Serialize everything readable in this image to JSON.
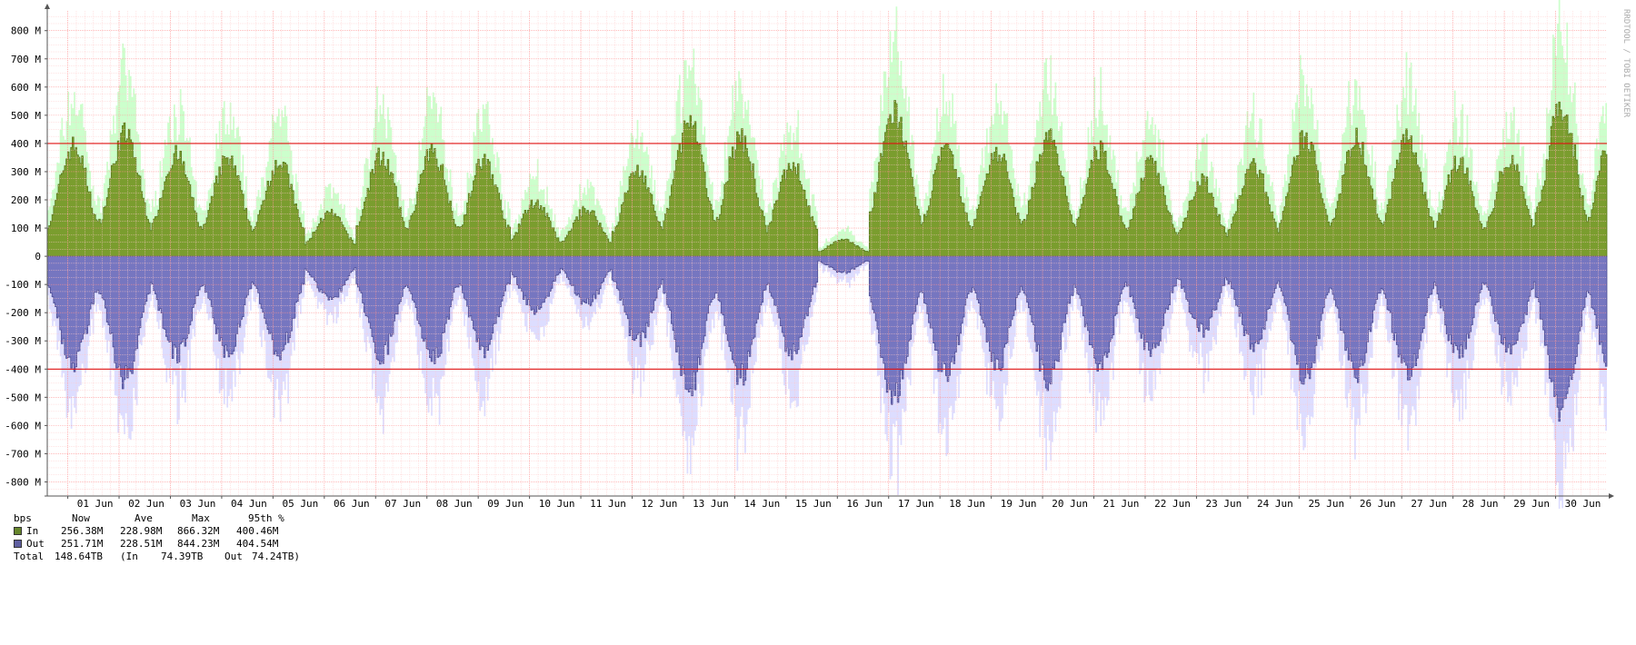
{
  "chart_data": {
    "type": "area",
    "ylabel": "bps",
    "y_ticks": [
      "800 M",
      "700 M",
      "600 M",
      "500 M",
      "400 M",
      "300 M",
      "200 M",
      "100 M",
      "0",
      "-100 M",
      "-200 M",
      "-300 M",
      "-400 M",
      "-500 M",
      "-600 M",
      "-700 M",
      "-800 M"
    ],
    "y_tick_values": [
      800,
      700,
      600,
      500,
      400,
      300,
      200,
      100,
      0,
      -100,
      -200,
      -300,
      -400,
      -500,
      -600,
      -700,
      -800
    ],
    "ylim": [
      -850,
      870
    ],
    "x_ticks": [
      "01 Jun",
      "02 Jun",
      "03 Jun",
      "04 Jun",
      "05 Jun",
      "06 Jun",
      "07 Jun",
      "08 Jun",
      "09 Jun",
      "10 Jun",
      "11 Jun",
      "12 Jun",
      "13 Jun",
      "14 Jun",
      "15 Jun",
      "16 Jun",
      "17 Jun",
      "18 Jun",
      "19 Jun",
      "20 Jun",
      "21 Jun",
      "22 Jun",
      "23 Jun",
      "24 Jun",
      "25 Jun",
      "26 Jun",
      "27 Jun",
      "28 Jun",
      "29 Jun",
      "30 Jun"
    ],
    "x_range_days": [
      0.6,
      31.0
    ],
    "percentile_lines": [
      400,
      -400
    ],
    "grid": true,
    "series": [
      {
        "name": "In",
        "color": "#7a9d2e",
        "peak_color": "#ccffcc",
        "daily_peaks_M": [
          410,
          455,
          375,
          360,
          355,
          160,
          375,
          390,
          355,
          200,
          175,
          320,
          495,
          440,
          345,
          60,
          535,
          390,
          390,
          445,
          395,
          345,
          280,
          340,
          440,
          435,
          440,
          355,
          360,
          565,
          465
        ]
      },
      {
        "name": "Out",
        "color": "#7676c0",
        "peak_color": "#ddddff",
        "daily_peaks_M": [
          400,
          455,
          370,
          355,
          360,
          160,
          370,
          385,
          350,
          200,
          175,
          315,
          490,
          445,
          350,
          60,
          520,
          440,
          400,
          455,
          400,
          355,
          280,
          330,
          440,
          435,
          440,
          365,
          360,
          570,
          460
        ]
      }
    ],
    "legend": {
      "header": {
        "label": "bps",
        "now": "Now",
        "ave": "Ave",
        "max": "Max",
        "p95": "95th %"
      },
      "rows": [
        {
          "name": "In",
          "color": "#66862c",
          "now": "256.38M",
          "ave": "228.98M",
          "max": "866.32M",
          "p95": "400.46M"
        },
        {
          "name": "Out",
          "color": "#5f5fa0",
          "now": "251.71M",
          "ave": "228.51M",
          "max": "844.23M",
          "p95": "404.54M"
        }
      ],
      "total": {
        "label": "Total",
        "value": "148.64TB",
        "in_label": "(In",
        "in_value": "74.39TB",
        "out_label": "Out",
        "out_value": "74.24TB)"
      }
    },
    "watermark": "RRDTOOL / TOBI OETIKER"
  }
}
